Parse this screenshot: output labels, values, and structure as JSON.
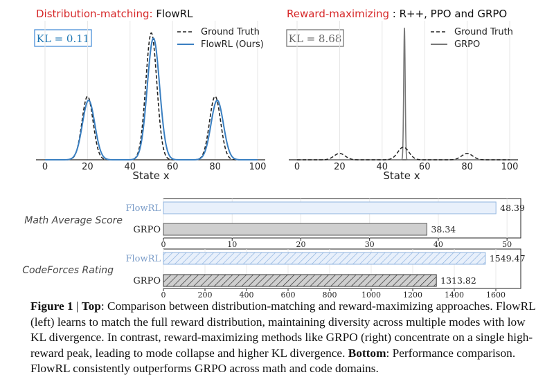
{
  "chart_data": [
    {
      "type": "line",
      "title_prefix": "Distribution-matching:",
      "title_suffix": "FlowRL",
      "title_prefix_color": "#d62728",
      "kl_label": "KL = 0.11",
      "kl_color": "#1f77b4",
      "xlabel": "State x",
      "xlim": [
        0,
        100
      ],
      "xticks": [
        0,
        20,
        40,
        60,
        80,
        100
      ],
      "ylim": [
        0,
        1.0
      ],
      "series": [
        {
          "name": "Ground Truth",
          "style": "dashed",
          "color": "#222222",
          "peaks": [
            {
              "mu": 20,
              "sigma": 2.6,
              "height": 0.48
            },
            {
              "mu": 50,
              "sigma": 2.6,
              "height": 0.96
            },
            {
              "mu": 80,
              "sigma": 2.6,
              "height": 0.48
            }
          ]
        },
        {
          "name": "FlowRL (Ours)",
          "style": "solid",
          "color": "#3a7fc1",
          "peaks": [
            {
              "mu": 20.5,
              "sigma": 2.9,
              "height": 0.45
            },
            {
              "mu": 51,
              "sigma": 2.9,
              "height": 0.92
            },
            {
              "mu": 81,
              "sigma": 2.9,
              "height": 0.45
            }
          ]
        }
      ]
    },
    {
      "type": "line",
      "title_prefix": "Reward-maximizing",
      "title_suffix": ":  R++, PPO and GRPO",
      "title_prefix_color": "#d62728",
      "kl_label": "KL = 8.68",
      "kl_color": "#666666",
      "xlabel": "State x",
      "xlim": [
        0,
        100
      ],
      "xticks": [
        0,
        20,
        40,
        60,
        80,
        100
      ],
      "ylim": [
        0,
        1.0
      ],
      "series": [
        {
          "name": "Ground Truth",
          "style": "dashed",
          "color": "#222222",
          "peaks": [
            {
              "mu": 20,
              "sigma": 2.6,
              "height": 0.048
            },
            {
              "mu": 50,
              "sigma": 2.6,
              "height": 0.096
            },
            {
              "mu": 80,
              "sigma": 2.6,
              "height": 0.048
            }
          ]
        },
        {
          "name": "GRPO",
          "style": "solid",
          "color": "#777777",
          "peaks": [
            {
              "mu": 50.5,
              "sigma": 0.35,
              "height": 1.0
            }
          ]
        }
      ]
    },
    {
      "type": "bar",
      "orientation": "horizontal",
      "title": "Math Average Score",
      "categories": [
        "FlowRL",
        "GRPO"
      ],
      "values": [
        48.39,
        38.34
      ],
      "value_labels": [
        "48.39",
        "38.34"
      ],
      "xlim": [
        0,
        52
      ],
      "xticks": [
        0,
        10,
        20,
        30,
        40,
        50
      ]
    },
    {
      "type": "bar",
      "orientation": "horizontal",
      "title": "CodeForces Rating",
      "categories": [
        "FlowRL",
        "GRPO"
      ],
      "values": [
        1549.47,
        1313.82
      ],
      "value_labels": [
        "1549.47",
        "1313.82"
      ],
      "xlim": [
        0,
        1720
      ],
      "xticks": [
        0,
        200,
        400,
        600,
        800,
        1000,
        1200,
        1400,
        1600
      ]
    }
  ],
  "caption": {
    "fig_label": "Figure 1",
    "sep": " | ",
    "top_label": "Top",
    "text1": ": Comparison between distribution-matching and reward-maximizing approaches. FlowRL (left) learns to match the full reward distribution, maintaining diversity across multiple modes with low KL divergence. In contrast, reward-maximizing methods like GRPO (right) concentrate on a single high-reward peak, leading to mode collapse and higher KL divergence. ",
    "bottom_label": "Bottom",
    "text2": ": Performance comparison. FlowRL consistently outperforms GRPO across math and code domains."
  }
}
